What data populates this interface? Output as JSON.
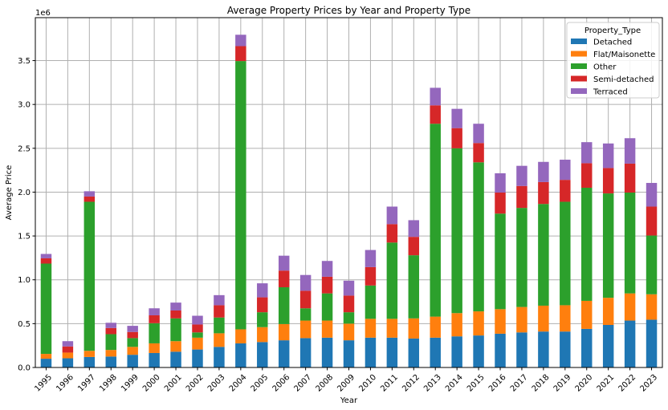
{
  "chart_data": {
    "type": "bar",
    "stacked": true,
    "title": "Average Property Prices by Year and Property Type",
    "xlabel": "Year",
    "ylabel": "Average Price",
    "y_scale_label": "1e6",
    "ylim": [
      0,
      3990000
    ],
    "yticks": [
      0,
      500000,
      1000000,
      1500000,
      2000000,
      2500000,
      3000000,
      3500000
    ],
    "ytick_labels": [
      "0.0",
      "0.5",
      "1.0",
      "1.5",
      "2.0",
      "2.5",
      "3.0",
      "3.5"
    ],
    "grid": true,
    "legend_title": "Property_Type",
    "legend_position": "top-right",
    "categories": [
      "1995",
      "1996",
      "1997",
      "1998",
      "1999",
      "2000",
      "2001",
      "2002",
      "2003",
      "2004",
      "2005",
      "2006",
      "2007",
      "2008",
      "2009",
      "2010",
      "2011",
      "2012",
      "2013",
      "2014",
      "2015",
      "2016",
      "2017",
      "2018",
      "2019",
      "2020",
      "2021",
      "2022",
      "2023"
    ],
    "series": [
      {
        "name": "Detached",
        "color": "#1f77b4",
        "values": [
          100000,
          105000,
          120000,
          125000,
          145000,
          165000,
          180000,
          205000,
          235000,
          275000,
          290000,
          310000,
          335000,
          340000,
          310000,
          340000,
          340000,
          330000,
          340000,
          355000,
          365000,
          385000,
          400000,
          410000,
          410000,
          440000,
          485000,
          535000,
          545000
        ]
      },
      {
        "name": "Flat/Maisonette",
        "color": "#ff7f0e",
        "values": [
          55000,
          65000,
          70000,
          75000,
          90000,
          110000,
          120000,
          135000,
          155000,
          160000,
          170000,
          185000,
          200000,
          195000,
          190000,
          215000,
          215000,
          230000,
          240000,
          265000,
          275000,
          280000,
          290000,
          295000,
          300000,
          320000,
          310000,
          310000,
          290000
        ]
      },
      {
        "name": "Other",
        "color": "#2ca02c",
        "values": [
          1030000,
          0,
          1700000,
          180000,
          100000,
          230000,
          260000,
          60000,
          180000,
          3060000,
          170000,
          420000,
          140000,
          310000,
          130000,
          380000,
          870000,
          720000,
          2200000,
          1880000,
          1700000,
          1090000,
          1130000,
          1160000,
          1180000,
          1290000,
          1190000,
          1150000,
          670000
        ]
      },
      {
        "name": "Semi-detached",
        "color": "#d62728",
        "values": [
          60000,
          70000,
          60000,
          70000,
          70000,
          90000,
          90000,
          90000,
          140000,
          170000,
          170000,
          190000,
          200000,
          190000,
          190000,
          210000,
          210000,
          210000,
          210000,
          230000,
          220000,
          240000,
          250000,
          250000,
          250000,
          280000,
          290000,
          330000,
          330000
        ]
      },
      {
        "name": "Terraced",
        "color": "#9467bd",
        "values": [
          50000,
          60000,
          60000,
          60000,
          70000,
          80000,
          90000,
          100000,
          115000,
          130000,
          160000,
          170000,
          180000,
          180000,
          170000,
          195000,
          200000,
          190000,
          200000,
          220000,
          220000,
          220000,
          230000,
          230000,
          230000,
          240000,
          280000,
          290000,
          270000
        ]
      }
    ]
  }
}
